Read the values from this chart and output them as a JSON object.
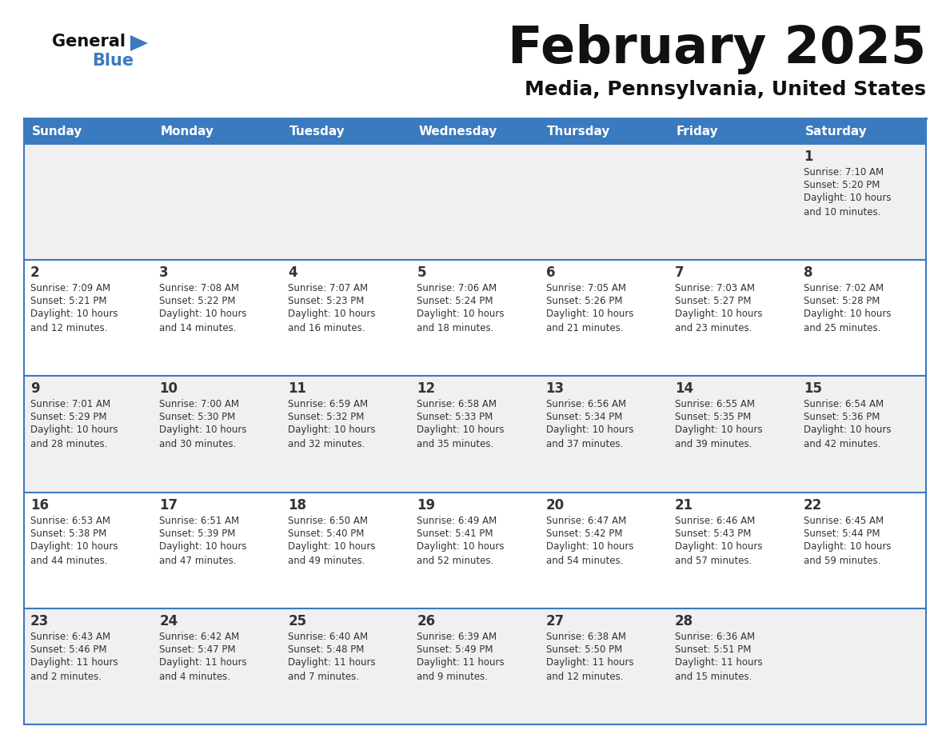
{
  "title": "February 2025",
  "subtitle": "Media, Pennsylvania, United States",
  "header_color": "#3a7abf",
  "header_text_color": "#ffffff",
  "day_names": [
    "Sunday",
    "Monday",
    "Tuesday",
    "Wednesday",
    "Thursday",
    "Friday",
    "Saturday"
  ],
  "cell_bg_even": "#f0f0f0",
  "cell_bg_odd": "#ffffff",
  "border_color": "#3a7abf",
  "day_num_color": "#333333",
  "text_color": "#333333",
  "logo_general_color": "#111111",
  "logo_blue_color": "#3a7abf",
  "logo_triangle_color": "#3a7abf",
  "weeks": [
    [
      {
        "day": null,
        "sunrise": null,
        "sunset": null,
        "daylight": null
      },
      {
        "day": null,
        "sunrise": null,
        "sunset": null,
        "daylight": null
      },
      {
        "day": null,
        "sunrise": null,
        "sunset": null,
        "daylight": null
      },
      {
        "day": null,
        "sunrise": null,
        "sunset": null,
        "daylight": null
      },
      {
        "day": null,
        "sunrise": null,
        "sunset": null,
        "daylight": null
      },
      {
        "day": null,
        "sunrise": null,
        "sunset": null,
        "daylight": null
      },
      {
        "day": 1,
        "sunrise": "7:10 AM",
        "sunset": "5:20 PM",
        "daylight": "10 hours\nand 10 minutes."
      }
    ],
    [
      {
        "day": 2,
        "sunrise": "7:09 AM",
        "sunset": "5:21 PM",
        "daylight": "10 hours\nand 12 minutes."
      },
      {
        "day": 3,
        "sunrise": "7:08 AM",
        "sunset": "5:22 PM",
        "daylight": "10 hours\nand 14 minutes."
      },
      {
        "day": 4,
        "sunrise": "7:07 AM",
        "sunset": "5:23 PM",
        "daylight": "10 hours\nand 16 minutes."
      },
      {
        "day": 5,
        "sunrise": "7:06 AM",
        "sunset": "5:24 PM",
        "daylight": "10 hours\nand 18 minutes."
      },
      {
        "day": 6,
        "sunrise": "7:05 AM",
        "sunset": "5:26 PM",
        "daylight": "10 hours\nand 21 minutes."
      },
      {
        "day": 7,
        "sunrise": "7:03 AM",
        "sunset": "5:27 PM",
        "daylight": "10 hours\nand 23 minutes."
      },
      {
        "day": 8,
        "sunrise": "7:02 AM",
        "sunset": "5:28 PM",
        "daylight": "10 hours\nand 25 minutes."
      }
    ],
    [
      {
        "day": 9,
        "sunrise": "7:01 AM",
        "sunset": "5:29 PM",
        "daylight": "10 hours\nand 28 minutes."
      },
      {
        "day": 10,
        "sunrise": "7:00 AM",
        "sunset": "5:30 PM",
        "daylight": "10 hours\nand 30 minutes."
      },
      {
        "day": 11,
        "sunrise": "6:59 AM",
        "sunset": "5:32 PM",
        "daylight": "10 hours\nand 32 minutes."
      },
      {
        "day": 12,
        "sunrise": "6:58 AM",
        "sunset": "5:33 PM",
        "daylight": "10 hours\nand 35 minutes."
      },
      {
        "day": 13,
        "sunrise": "6:56 AM",
        "sunset": "5:34 PM",
        "daylight": "10 hours\nand 37 minutes."
      },
      {
        "day": 14,
        "sunrise": "6:55 AM",
        "sunset": "5:35 PM",
        "daylight": "10 hours\nand 39 minutes."
      },
      {
        "day": 15,
        "sunrise": "6:54 AM",
        "sunset": "5:36 PM",
        "daylight": "10 hours\nand 42 minutes."
      }
    ],
    [
      {
        "day": 16,
        "sunrise": "6:53 AM",
        "sunset": "5:38 PM",
        "daylight": "10 hours\nand 44 minutes."
      },
      {
        "day": 17,
        "sunrise": "6:51 AM",
        "sunset": "5:39 PM",
        "daylight": "10 hours\nand 47 minutes."
      },
      {
        "day": 18,
        "sunrise": "6:50 AM",
        "sunset": "5:40 PM",
        "daylight": "10 hours\nand 49 minutes."
      },
      {
        "day": 19,
        "sunrise": "6:49 AM",
        "sunset": "5:41 PM",
        "daylight": "10 hours\nand 52 minutes."
      },
      {
        "day": 20,
        "sunrise": "6:47 AM",
        "sunset": "5:42 PM",
        "daylight": "10 hours\nand 54 minutes."
      },
      {
        "day": 21,
        "sunrise": "6:46 AM",
        "sunset": "5:43 PM",
        "daylight": "10 hours\nand 57 minutes."
      },
      {
        "day": 22,
        "sunrise": "6:45 AM",
        "sunset": "5:44 PM",
        "daylight": "10 hours\nand 59 minutes."
      }
    ],
    [
      {
        "day": 23,
        "sunrise": "6:43 AM",
        "sunset": "5:46 PM",
        "daylight": "11 hours\nand 2 minutes."
      },
      {
        "day": 24,
        "sunrise": "6:42 AM",
        "sunset": "5:47 PM",
        "daylight": "11 hours\nand 4 minutes."
      },
      {
        "day": 25,
        "sunrise": "6:40 AM",
        "sunset": "5:48 PM",
        "daylight": "11 hours\nand 7 minutes."
      },
      {
        "day": 26,
        "sunrise": "6:39 AM",
        "sunset": "5:49 PM",
        "daylight": "11 hours\nand 9 minutes."
      },
      {
        "day": 27,
        "sunrise": "6:38 AM",
        "sunset": "5:50 PM",
        "daylight": "11 hours\nand 12 minutes."
      },
      {
        "day": 28,
        "sunrise": "6:36 AM",
        "sunset": "5:51 PM",
        "daylight": "11 hours\nand 15 minutes."
      },
      {
        "day": null,
        "sunrise": null,
        "sunset": null,
        "daylight": null
      }
    ]
  ]
}
